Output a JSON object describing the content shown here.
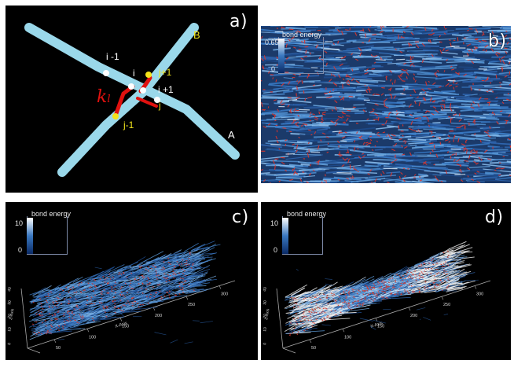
{
  "panels": {
    "a": {
      "letter": "a)",
      "labels": {
        "B": "B",
        "A": "A",
        "i_minus_1": "i -1",
        "i": "i",
        "i_plus_1": "i +1",
        "j_plus_1": "j+1",
        "j": "j",
        "j_minus_1": "j-1",
        "k": "k",
        "k_sub": "l"
      },
      "colors": {
        "rod": "#9ad8ea",
        "spring": "#e0110f",
        "node": "#ffffff",
        "yellow_node": "#f4e21a",
        "label_white": "#ffffff",
        "label_yellow": "#f2e51c"
      }
    },
    "b": {
      "letter": "b)",
      "legend": {
        "title": "bond energy",
        "max": "0.65",
        "min": "0"
      },
      "colors": {
        "fiber": "#4f8fd0",
        "bond": "#e0342a"
      }
    },
    "c": {
      "letter": "c)",
      "legend": {
        "title": "bond energy",
        "max": "10",
        "min": "0"
      },
      "axis": {
        "x_ticks": [
          "50",
          "100",
          "150",
          "200",
          "250",
          "300"
        ],
        "x_label": "X-Axis",
        "z_ticks": [
          "0",
          "10",
          "20",
          "30",
          "40"
        ],
        "z_label": "Z-Axis"
      }
    },
    "d": {
      "letter": "d)",
      "legend": {
        "title": "bond energy",
        "max": "10",
        "min": "0"
      },
      "axis": {
        "x_ticks": [
          "50",
          "100",
          "150",
          "200",
          "250",
          "300"
        ],
        "x_label": "X-Axis",
        "z_ticks": [
          "0",
          "10",
          "20",
          "30",
          "40"
        ],
        "z_label": "Z-Axis"
      }
    }
  }
}
